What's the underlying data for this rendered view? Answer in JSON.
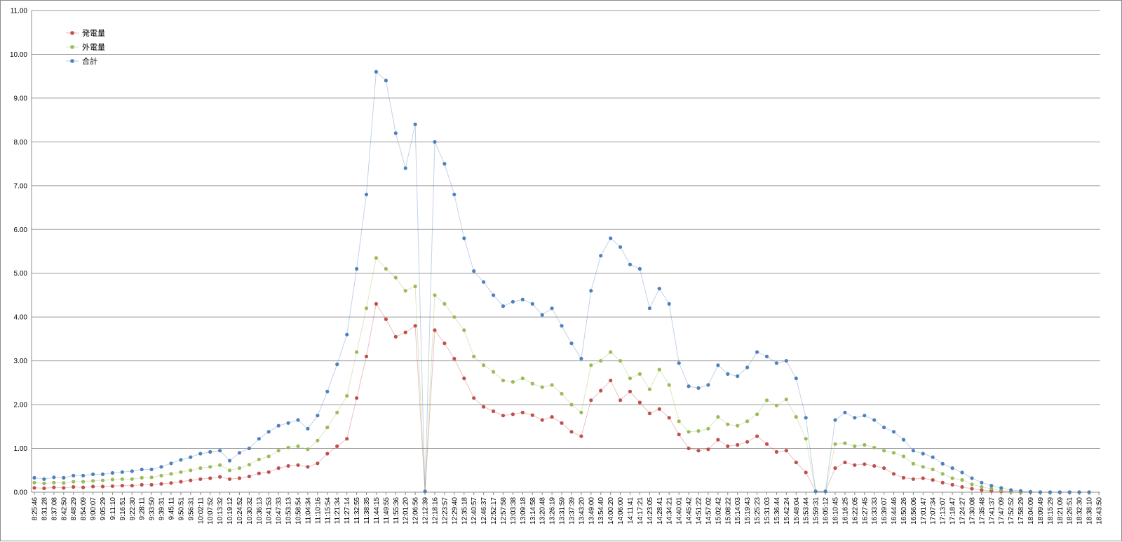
{
  "chart_data": {
    "type": "line",
    "title": "",
    "xlabel": "",
    "ylabel": "",
    "ylim": [
      0,
      11
    ],
    "yticks": [
      "0.00",
      "1.00",
      "2.00",
      "3.00",
      "4.00",
      "5.00",
      "6.00",
      "7.00",
      "8.00",
      "9.00",
      "10.00",
      "11.00"
    ],
    "grid": true,
    "legend_position": "top-left",
    "x_tick_labels": [
      "8:25:46",
      "8:31:28",
      "8:37:08",
      "8:42:50",
      "8:48:29",
      "8:54:09",
      "9:00:07",
      "9:05:29",
      "9:11:10",
      "9:16:51",
      "9:22:30",
      "9:28:11",
      "9:33:50",
      "9:39:31",
      "9:45:11",
      "9:50:51",
      "9:56:31",
      "10:02:11",
      "10:07:52",
      "10:13:32",
      "10:19:12",
      "10:24:52",
      "10:30:32",
      "10:36:13",
      "10:41:53",
      "10:47:33",
      "10:53:13",
      "10:58:54",
      "11:04:34",
      "11:10:16",
      "11:15:54",
      "11:21:34",
      "11:27:14",
      "11:32:55",
      "11:38:35",
      "11:44:15",
      "11:49:55",
      "11:55:36",
      "12:01:20",
      "12:06:56",
      "12:12:39",
      "12:18:16",
      "12:23:57",
      "12:29:40",
      "12:35:18",
      "12:40:57",
      "12:46:37",
      "12:52:17",
      "12:57:58",
      "13:03:38",
      "13:09:18",
      "13:14:58",
      "13:20:48",
      "13:26:19",
      "13:31:59",
      "13:37:39",
      "13:43:20",
      "13:49:00",
      "13:54:40",
      "14:00:20",
      "14:06:00",
      "14:11:41",
      "14:17:21",
      "14:23:05",
      "14:28:41",
      "14:34:21",
      "14:40:01",
      "14:45:42",
      "14:51:22",
      "14:57:02",
      "15:02:42",
      "15:08:22",
      "15:14:03",
      "15:19:43",
      "15:25:23",
      "15:31:03",
      "15:36:44",
      "15:42:24",
      "15:48:04",
      "15:53:44",
      "15:59:31",
      "16:05:12",
      "16:10:45",
      "16:16:25",
      "16:22:05",
      "16:27:45",
      "16:33:33",
      "16:39:07",
      "16:44:46",
      "16:50:26",
      "16:56:06",
      "17:01:47",
      "17:07:34",
      "17:13:07",
      "17:18:47",
      "17:24:27",
      "17:30:08",
      "17:35:48",
      "17:41:37",
      "17:47:09",
      "17:52:52",
      "17:58:29",
      "18:04:09",
      "18:09:49",
      "18:15:29",
      "18:21:09",
      "18:26:51",
      "18:32:30",
      "18:38:10",
      "18:43:50"
    ],
    "series": [
      {
        "name": "発電量",
        "color": "#c0504d",
        "values": [
          0.1,
          0.09,
          0.11,
          0.1,
          0.12,
          0.11,
          0.13,
          0.13,
          0.14,
          0.15,
          0.15,
          0.17,
          0.17,
          0.19,
          0.21,
          0.24,
          0.27,
          0.3,
          0.32,
          0.35,
          0.3,
          0.32,
          0.36,
          0.43,
          0.46,
          0.55,
          0.6,
          0.62,
          0.58,
          0.66,
          0.88,
          1.05,
          1.22,
          2.15,
          3.1,
          4.3,
          3.95,
          3.55,
          3.65,
          3.8,
          0.02,
          3.7,
          3.4,
          3.05,
          2.6,
          2.15,
          1.95,
          1.85,
          1.75,
          1.78,
          1.82,
          1.76,
          1.65,
          1.72,
          1.58,
          1.38,
          1.28,
          2.1,
          2.32,
          2.55,
          2.1,
          2.3,
          2.05,
          1.8,
          1.9,
          1.7,
          1.32,
          1.0,
          0.95,
          0.98,
          1.2,
          1.05,
          1.08,
          1.15,
          1.28,
          1.1,
          0.92,
          0.95,
          0.68,
          0.45,
          0.02,
          0.02,
          0.55,
          0.68,
          0.62,
          0.64,
          0.6,
          0.55,
          0.42,
          0.33,
          0.3,
          0.32,
          0.28,
          0.22,
          0.17,
          0.12,
          0.08,
          0.05,
          0.03,
          0.02,
          0.01,
          0.0,
          0.0,
          0.0,
          0.0,
          0.0,
          0.0,
          0.0,
          0.0
        ]
      },
      {
        "name": "外電量",
        "color": "#9bbb59",
        "values": [
          0.22,
          0.2,
          0.22,
          0.21,
          0.24,
          0.24,
          0.26,
          0.27,
          0.29,
          0.3,
          0.3,
          0.33,
          0.34,
          0.38,
          0.42,
          0.46,
          0.5,
          0.55,
          0.58,
          0.62,
          0.5,
          0.55,
          0.63,
          0.75,
          0.82,
          0.95,
          1.02,
          1.05,
          0.98,
          1.18,
          1.48,
          1.82,
          2.2,
          3.2,
          4.2,
          5.35,
          5.1,
          4.9,
          4.6,
          4.7,
          0.02,
          4.5,
          4.3,
          4.0,
          3.7,
          3.1,
          2.9,
          2.75,
          2.55,
          2.52,
          2.6,
          2.48,
          2.4,
          2.45,
          2.25,
          2.0,
          1.82,
          2.9,
          3.0,
          3.2,
          3.0,
          2.6,
          2.7,
          2.35,
          2.8,
          2.45,
          1.62,
          1.38,
          1.4,
          1.45,
          1.72,
          1.55,
          1.52,
          1.62,
          1.78,
          2.1,
          1.98,
          2.12,
          1.72,
          1.22,
          0.02,
          0.02,
          1.1,
          1.12,
          1.05,
          1.08,
          1.02,
          0.95,
          0.9,
          0.82,
          0.65,
          0.58,
          0.52,
          0.42,
          0.32,
          0.28,
          0.18,
          0.12,
          0.08,
          0.04,
          0.02,
          0.01,
          0.0,
          0.0,
          0.0,
          0.0,
          0.0,
          0.0,
          0.0
        ]
      },
      {
        "name": "合計",
        "color": "#4f81bd",
        "values": [
          0.33,
          0.3,
          0.34,
          0.33,
          0.38,
          0.38,
          0.41,
          0.41,
          0.44,
          0.46,
          0.48,
          0.52,
          0.52,
          0.58,
          0.66,
          0.74,
          0.8,
          0.88,
          0.92,
          0.95,
          0.72,
          0.9,
          1.0,
          1.22,
          1.38,
          1.52,
          1.58,
          1.65,
          1.45,
          1.75,
          2.3,
          2.92,
          3.6,
          5.1,
          6.8,
          9.6,
          9.4,
          8.2,
          7.4,
          8.4,
          0.02,
          8.0,
          7.5,
          6.8,
          5.8,
          5.05,
          4.8,
          4.5,
          4.25,
          4.35,
          4.4,
          4.3,
          4.05,
          4.2,
          3.8,
          3.4,
          3.05,
          4.6,
          5.4,
          5.8,
          5.6,
          5.2,
          5.1,
          4.2,
          4.65,
          4.3,
          2.95,
          2.42,
          2.38,
          2.45,
          2.9,
          2.7,
          2.65,
          2.85,
          3.2,
          3.1,
          2.95,
          3.0,
          2.6,
          1.7,
          0.02,
          0.02,
          1.65,
          1.82,
          1.7,
          1.75,
          1.65,
          1.48,
          1.38,
          1.2,
          0.95,
          0.88,
          0.8,
          0.65,
          0.55,
          0.45,
          0.32,
          0.22,
          0.15,
          0.1,
          0.05,
          0.03,
          0.01,
          0.0,
          0.0,
          0.0,
          0.0,
          0.0,
          0.0
        ]
      }
    ]
  }
}
